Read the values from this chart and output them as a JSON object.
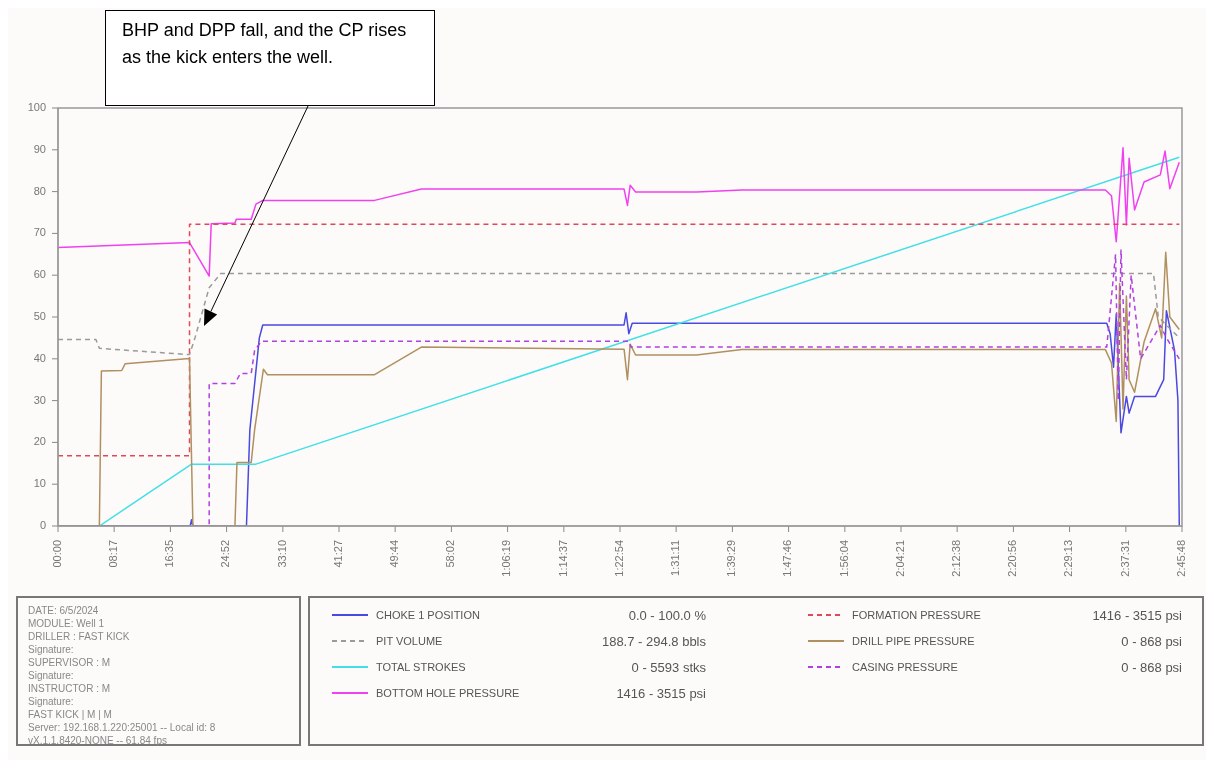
{
  "chart_data": {
    "type": "line",
    "xlim": [
      0,
      165.8
    ],
    "ylim": [
      0,
      100
    ],
    "yticks": [
      0,
      10,
      20,
      30,
      40,
      50,
      60,
      70,
      80,
      90,
      100
    ],
    "xticks": [
      {
        "value": 0,
        "label": "00:00"
      },
      {
        "value": 8.283,
        "label": "08:17"
      },
      {
        "value": 16.583,
        "label": "16:35"
      },
      {
        "value": 24.867,
        "label": "24:52"
      },
      {
        "value": 33.167,
        "label": "33:10"
      },
      {
        "value": 41.45,
        "label": "41:27"
      },
      {
        "value": 49.733,
        "label": "49:44"
      },
      {
        "value": 58.033,
        "label": "58:02"
      },
      {
        "value": 66.317,
        "label": "1:06:19"
      },
      {
        "value": 74.617,
        "label": "1:14:37"
      },
      {
        "value": 82.9,
        "label": "1:22:54"
      },
      {
        "value": 91.183,
        "label": "1:31:11"
      },
      {
        "value": 99.483,
        "label": "1:39:29"
      },
      {
        "value": 107.767,
        "label": "1:47:46"
      },
      {
        "value": 116.067,
        "label": "1:56:04"
      },
      {
        "value": 124.35,
        "label": "2:04:21"
      },
      {
        "value": 132.633,
        "label": "2:12:38"
      },
      {
        "value": 140.933,
        "label": "2:20:56"
      },
      {
        "value": 149.217,
        "label": "2:29:13"
      },
      {
        "value": 157.517,
        "label": "2:37:31"
      },
      {
        "value": 165.8,
        "label": "2:45:48"
      }
    ],
    "grid": false,
    "legend": "bottom",
    "marker": "none",
    "series": [
      {
        "name": "CHOKE 1 POSITION",
        "color": "#4a4ae0",
        "line_style": "solid",
        "x": [
          0,
          19.5,
          19.7,
          19.9,
          27.8,
          28.3,
          29.7,
          30.2,
          83.5,
          83.8,
          84.2,
          84.7,
          154.7,
          155.2,
          155.7,
          156.1,
          156.8,
          157.6,
          158.0,
          158.8,
          161.9,
          163.1,
          163.5,
          164.7,
          165.2,
          165.4
        ],
        "values": [
          0,
          0,
          1.5,
          0,
          0,
          23,
          45,
          48.1,
          48.1,
          51,
          46,
          48.5,
          48.5,
          46,
          38,
          50.7,
          22.3,
          31,
          27,
          31,
          31,
          35,
          51.5,
          42,
          30,
          0
        ]
      },
      {
        "name": "PIT VOLUME",
        "color": "#9a9a9a",
        "line_style": "dashed",
        "x": [
          0,
          5.6,
          6.1,
          19.4,
          20.2,
          22.3,
          24.0,
          161.6,
          162.3,
          165.4
        ],
        "values": [
          44.6,
          44.6,
          42.5,
          41,
          45,
          57,
          60.4,
          60.4,
          50,
          45
        ]
      },
      {
        "name": "TOTAL STROKES",
        "color": "#40e0e8",
        "line_style": "solid",
        "x": [
          0,
          6.1,
          19.7,
          29.2,
          165.4
        ],
        "values": [
          0,
          0,
          14.8,
          14.8,
          88.2
        ]
      },
      {
        "name": "BOTTOM HOLE PRESSURE",
        "color": "#f040f0",
        "line_style": "solid",
        "x": [
          0,
          19.4,
          22.3,
          22.6,
          26.1,
          26.3,
          28.5,
          29.2,
          30.2,
          46.7,
          53.6,
          83.5,
          84.0,
          84.4,
          85.2,
          94.2,
          100.9,
          154.5,
          155.4,
          156.1,
          157.1,
          157.6,
          158.0,
          158.8,
          160.2,
          162.6,
          163.3,
          164.0,
          165.4
        ],
        "values": [
          66.6,
          67.8,
          59.8,
          72.3,
          72.5,
          73.4,
          73.4,
          77,
          77.9,
          77.9,
          80.6,
          80.6,
          76.7,
          81.5,
          79.9,
          79.9,
          80.4,
          80.4,
          79,
          68,
          90.5,
          72,
          88,
          75.6,
          82.3,
          84,
          89.7,
          80.7,
          87
        ]
      },
      {
        "name": "FORMATION PRESSURE",
        "color": "#e04858",
        "line_style": "dashed",
        "x": [
          0,
          19.4,
          19.4,
          165.4
        ],
        "values": [
          16.8,
          16.8,
          72.2,
          72.2
        ]
      },
      {
        "name": "DRILL PIPE PRESSURE",
        "color": "#b09060",
        "line_style": "solid",
        "x": [
          0,
          6.1,
          6.4,
          9.4,
          9.9,
          19.4,
          19.9,
          26.1,
          26.4,
          28.5,
          29.0,
          30.3,
          30.9,
          46.7,
          53.6,
          83.5,
          84.0,
          84.4,
          85.2,
          94.2,
          100.9,
          154.5,
          155.4,
          156.1,
          156.6,
          157.1,
          157.6,
          158.0,
          158.8,
          160.2,
          161.9,
          162.8,
          163.4,
          164.0,
          165.4
        ],
        "values": [
          0,
          0,
          37.1,
          37.2,
          38.8,
          40.1,
          0,
          0,
          15.2,
          15.2,
          23,
          37.5,
          36.2,
          36.2,
          42.8,
          42.3,
          35,
          43.5,
          40.9,
          40.9,
          42.2,
          42.2,
          39,
          25,
          58,
          28,
          55,
          35,
          32,
          44,
          52,
          45,
          65.5,
          50,
          47
        ]
      },
      {
        "name": "CASING PRESSURE",
        "color": "#b040e0",
        "line_style": "dashed",
        "x": [
          0,
          22.3,
          22.3,
          26.1,
          26.9,
          28.5,
          29.0,
          30.0,
          84.2,
          84.5,
          154.7,
          156.0,
          156.4,
          156.8,
          157.6,
          158.3,
          159.7,
          162.6,
          163.5,
          165.4
        ],
        "values": [
          0,
          0,
          34.1,
          34.1,
          36.5,
          36.5,
          42,
          44.2,
          44.2,
          42.8,
          42.8,
          65,
          30,
          66,
          35,
          60,
          40,
          48,
          45,
          40
        ]
      }
    ],
    "annotations": [
      "BHP and DPP fall, and the CP rises as the kick enters the well.",
      "0.0 - 100.0 %",
      "188.7 - 294.8 bbls",
      "0 - 5593 stks",
      "1416 - 3515 psi",
      "1416 - 3515 psi",
      "0 - 868 psi",
      "0 - 868 psi",
      "DATE: 6/5/2024",
      "MODULE: Well 1",
      "DRILLER : FAST KICK",
      "Signature:",
      "SUPERVISOR : M",
      "Signature:",
      "INSTRUCTOR : M",
      "Signature:",
      "FAST KICK | M | M",
      "Server: 192.168.1.220:25001 -- Local id: 8",
      "vX.1.1.8420-NONE -- 61.84 fps"
    ]
  }
}
